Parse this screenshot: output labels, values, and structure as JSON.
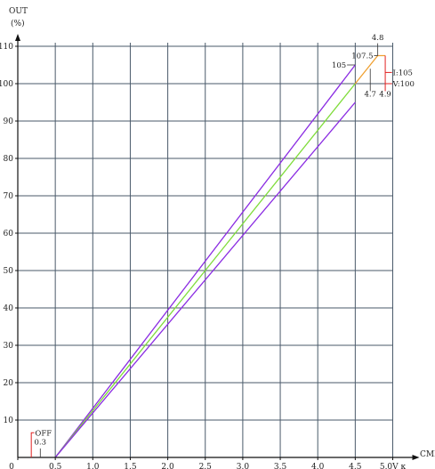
{
  "chart_data": {
    "type": "line",
    "title": "",
    "ylabel_line1": "OUT",
    "ylabel_line2": "(%)",
    "xlabel": "CMI",
    "xlim": [
      0,
      5.0
    ],
    "ylim": [
      0,
      110
    ],
    "grid": true,
    "x_ticks": [
      "0",
      "0.5",
      "1.0",
      "1.5",
      "2.0",
      "2.5",
      "3.0",
      "3.5",
      "4.0",
      "4.5",
      "5.0"
    ],
    "x_tick_suffix": "V κ",
    "y_ticks": [
      "0",
      "10",
      "20",
      "30",
      "40",
      "50",
      "60",
      "70",
      "80",
      "90",
      "100",
      "110"
    ],
    "colors": {
      "upper": "#8a2be2",
      "center": "#7fdc3a",
      "lower": "#8a2be2",
      "saturation": "#f0a030",
      "marker": "#e02020",
      "grid": "#4a5a6a"
    },
    "series": [
      {
        "key": "upper",
        "points": [
          [
            0.5,
            0
          ],
          [
            4.5,
            105
          ]
        ]
      },
      {
        "key": "center",
        "points": [
          [
            0.5,
            0
          ],
          [
            4.5,
            100
          ]
        ]
      },
      {
        "key": "lower",
        "points": [
          [
            0.5,
            0
          ],
          [
            4.5,
            95
          ]
        ]
      },
      {
        "key": "saturation",
        "points": [
          [
            4.5,
            100
          ],
          [
            4.8,
            107.5
          ],
          [
            4.9,
            107.5
          ]
        ]
      }
    ],
    "annotations": {
      "label_105": "105",
      "label_107_5": "107.5",
      "label_4_8": "4.8",
      "label_4_7": "4.7",
      "label_4_9": "4.9",
      "label_i": "I:105",
      "label_v": "V:100",
      "label_off": "OFF",
      "label_0_3": "0.3"
    }
  }
}
